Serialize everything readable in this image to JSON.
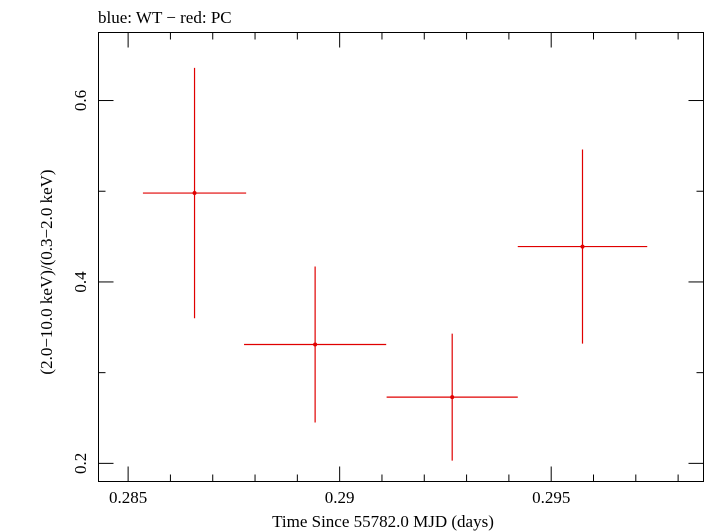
{
  "chart_data": {
    "type": "scatter",
    "title": "blue: WT − red: PC",
    "xlabel": "Time Since 55782.0 MJD (days)",
    "ylabel": "(2.0−10.0 keV)/(0.3−2.0 keV)",
    "xlim": [
      0.2843,
      0.2986
    ],
    "ylim": [
      0.18,
      0.675
    ],
    "x_ticks": [
      {
        "value": 0.285,
        "label": "0.285"
      },
      {
        "value": 0.29,
        "label": "0.29"
      },
      {
        "value": 0.295,
        "label": "0.295"
      }
    ],
    "y_ticks": [
      {
        "value": 0.2,
        "label": "0.2"
      },
      {
        "value": 0.4,
        "label": "0.4"
      },
      {
        "value": 0.6,
        "label": "0.6"
      }
    ],
    "x_minor_step": 0.001,
    "y_minor_step": 0.1,
    "grid": false,
    "series": [
      {
        "color": "#e00000",
        "points": [
          {
            "x": 0.28657,
            "y": 0.498,
            "xerr": 0.00122,
            "yerr": 0.138
          },
          {
            "x": 0.28942,
            "y": 0.331,
            "xerr": 0.00168,
            "yerr": 0.086
          },
          {
            "x": 0.29266,
            "y": 0.273,
            "xerr": 0.00155,
            "yerr": 0.07
          },
          {
            "x": 0.29574,
            "y": 0.439,
            "xerr": 0.00153,
            "yerr": 0.107
          }
        ]
      }
    ]
  }
}
